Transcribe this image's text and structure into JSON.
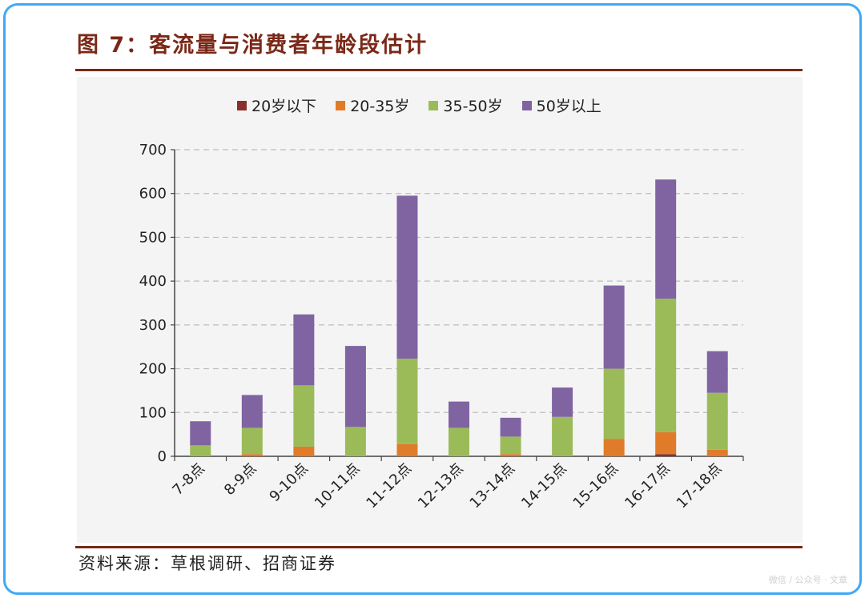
{
  "title": "图 7：客流量与消费者年龄段估计",
  "source": "资料来源：草根调研、招商证券",
  "watermark": "微信 / 公众号 · 文章",
  "colors": {
    "frame": "#3fa9f5",
    "accent": "#7b2818",
    "grid": "#bdbdbd"
  },
  "chart_data": {
    "type": "bar",
    "stacked": true,
    "categories": [
      "7-8点",
      "8-9点",
      "9-10点",
      "10-11点",
      "11-12点",
      "12-13点",
      "13-14点",
      "14-15点",
      "15-16点",
      "16-17点",
      "17-18点"
    ],
    "series": [
      {
        "name": "20岁以下",
        "color": "#8b2f2b",
        "values": [
          0,
          0,
          0,
          0,
          0,
          0,
          0,
          0,
          0,
          5,
          0
        ]
      },
      {
        "name": "20-35岁",
        "color": "#e07b2a",
        "values": [
          0,
          5,
          22,
          0,
          28,
          0,
          5,
          0,
          40,
          50,
          15
        ]
      },
      {
        "name": "35-50岁",
        "color": "#9bbb59",
        "values": [
          25,
          60,
          140,
          67,
          195,
          65,
          40,
          90,
          160,
          305,
          130
        ]
      },
      {
        "name": "50岁以上",
        "color": "#8064a2",
        "values": [
          55,
          75,
          162,
          185,
          372,
          60,
          43,
          67,
          190,
          272,
          95
        ]
      }
    ],
    "ylim": [
      0,
      700
    ],
    "yticks": [
      0,
      100,
      200,
      300,
      400,
      500,
      600,
      700
    ],
    "grid": true,
    "legend": "top"
  }
}
